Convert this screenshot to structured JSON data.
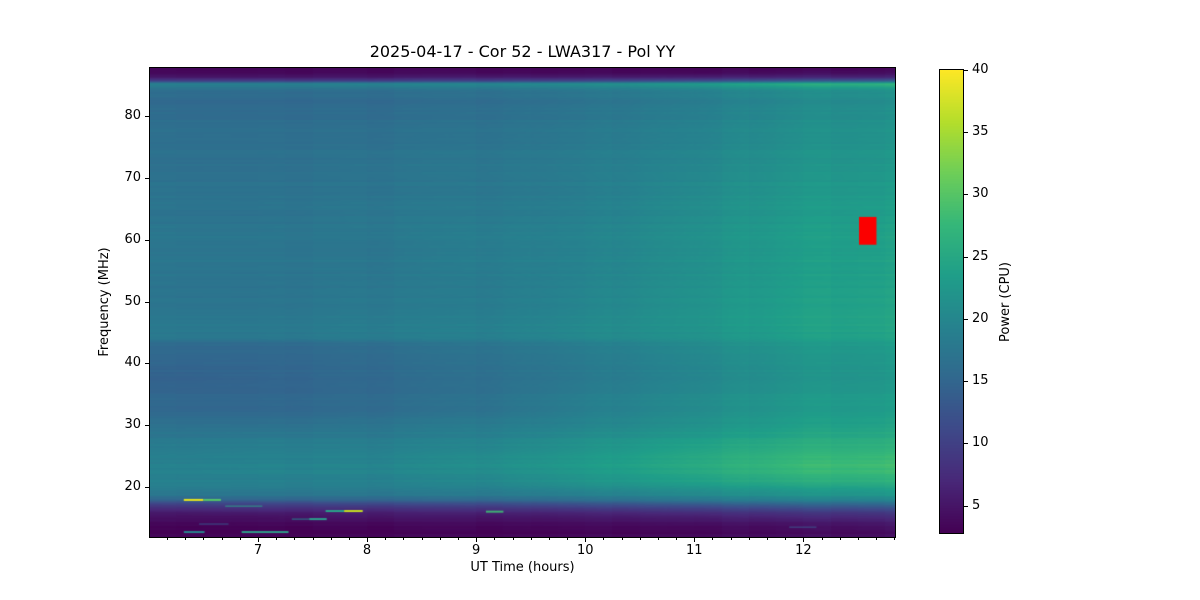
{
  "chart_data": {
    "type": "heatmap",
    "title": "2025-04-17 - Cor 52 - LWA317 - Pol YY",
    "xlabel": "UT Time (hours)",
    "ylabel": "Frequency (MHz)",
    "colorbar_label": "Power (CPU)",
    "xlim": [
      6.01,
      12.84
    ],
    "ylim": [
      11.9,
      87.8
    ],
    "clim": [
      2.8,
      40
    ],
    "x_major_ticks": [
      7,
      8,
      9,
      10,
      11,
      12
    ],
    "x_minor_interval_hours": 0.166667,
    "y_ticks": [
      20,
      30,
      40,
      50,
      60,
      70,
      80
    ],
    "colorbar_ticks": [
      5,
      10,
      15,
      20,
      25,
      30,
      35,
      40
    ],
    "colormap": "viridis",
    "colormap_stops": [
      "#440154",
      "#482878",
      "#3e4989",
      "#31688e",
      "#26828e",
      "#1f9e89",
      "#35b779",
      "#6ece58",
      "#b5de2b",
      "#fde725"
    ],
    "grid": false,
    "legend": "colorbar-right",
    "times": [
      6.0,
      7.0,
      8.0,
      9.0,
      10.0,
      11.0,
      12.0,
      12.84
    ],
    "freqs": [
      87.8,
      87.0,
      86.3,
      85.7,
      85.2,
      84.4,
      83.0,
      80.0,
      76.0,
      72.0,
      68.0,
      64.0,
      60.0,
      56.0,
      52.0,
      48.0,
      45.5,
      44.0,
      43.2,
      41.0,
      38.0,
      35.0,
      32.0,
      30.0,
      28.0,
      26.0,
      24.0,
      22.5,
      21.0,
      19.8,
      18.8,
      18.0,
      17.4,
      16.8,
      16.0,
      15.2,
      14.4,
      13.6,
      12.8,
      11.9
    ],
    "power": [
      [
        2.8,
        2.8,
        2.8,
        2.8,
        2.8,
        2.8,
        2.8,
        2.8
      ],
      [
        3.5,
        3.5,
        3.5,
        3.5,
        3.5,
        3.5,
        4.0,
        4.0
      ],
      [
        5.5,
        5.5,
        5.5,
        6.0,
        6.0,
        6.5,
        7.0,
        7.0
      ],
      [
        10.0,
        10.0,
        10.0,
        10.5,
        11.0,
        12.0,
        13.5,
        14.0
      ],
      [
        19.5,
        19.5,
        20.0,
        20.5,
        21.5,
        23.5,
        26.5,
        27.5
      ],
      [
        16.5,
        16.5,
        16.5,
        17.0,
        18.0,
        19.5,
        21.5,
        22.0
      ],
      [
        15.5,
        15.5,
        15.5,
        16.0,
        17.0,
        18.5,
        20.5,
        21.0
      ],
      [
        16.0,
        16.0,
        16.0,
        16.5,
        17.5,
        19.0,
        21.0,
        21.5
      ],
      [
        16.5,
        16.5,
        16.5,
        17.0,
        18.0,
        19.5,
        21.5,
        22.0
      ],
      [
        16.5,
        16.5,
        17.0,
        17.5,
        18.5,
        20.0,
        22.0,
        22.5
      ],
      [
        17.0,
        17.0,
        17.0,
        17.5,
        18.5,
        20.5,
        22.5,
        23.0
      ],
      [
        17.0,
        17.0,
        17.5,
        18.0,
        19.0,
        21.0,
        23.0,
        23.5
      ],
      [
        17.5,
        17.5,
        17.5,
        18.5,
        19.5,
        21.5,
        23.5,
        24.0
      ],
      [
        17.5,
        17.5,
        17.5,
        18.5,
        19.5,
        21.5,
        23.5,
        24.0
      ],
      [
        17.0,
        17.0,
        17.5,
        18.0,
        19.5,
        21.5,
        23.5,
        24.0
      ],
      [
        17.5,
        17.5,
        18.0,
        18.5,
        20.0,
        22.0,
        24.0,
        24.5
      ],
      [
        18.0,
        18.0,
        18.5,
        19.0,
        20.5,
        22.0,
        24.0,
        24.5
      ],
      [
        17.5,
        17.5,
        18.0,
        18.5,
        20.0,
        21.5,
        23.5,
        24.0
      ],
      [
        15.5,
        15.5,
        16.0,
        17.0,
        18.5,
        20.5,
        22.5,
        23.0
      ],
      [
        15.0,
        15.0,
        15.5,
        16.5,
        18.0,
        20.0,
        22.0,
        22.5
      ],
      [
        14.5,
        15.0,
        15.5,
        16.5,
        18.0,
        20.0,
        22.0,
        22.5
      ],
      [
        15.0,
        15.0,
        15.5,
        16.5,
        18.5,
        20.5,
        22.5,
        23.0
      ],
      [
        15.5,
        15.5,
        16.0,
        17.0,
        19.0,
        21.0,
        23.0,
        23.5
      ],
      [
        16.5,
        16.5,
        17.0,
        18.0,
        19.5,
        21.5,
        23.5,
        24.0
      ],
      [
        17.5,
        18.0,
        18.0,
        19.0,
        21.0,
        23.0,
        25.0,
        25.5
      ],
      [
        18.5,
        19.0,
        19.0,
        20.0,
        22.0,
        24.5,
        26.5,
        27.0
      ],
      [
        19.0,
        19.5,
        19.5,
        21.0,
        23.0,
        25.5,
        28.0,
        28.5
      ],
      [
        19.0,
        19.5,
        19.5,
        20.5,
        22.5,
        25.0,
        27.5,
        28.0
      ],
      [
        19.0,
        19.0,
        19.0,
        20.0,
        22.0,
        24.0,
        26.0,
        26.5
      ],
      [
        18.5,
        18.5,
        18.5,
        19.0,
        20.5,
        22.0,
        23.5,
        24.0
      ],
      [
        17.5,
        17.5,
        17.5,
        18.0,
        19.0,
        20.5,
        22.0,
        22.5
      ],
      [
        15.5,
        15.5,
        15.5,
        16.0,
        17.0,
        18.5,
        20.0,
        20.5
      ],
      [
        11.0,
        11.0,
        11.5,
        12.0,
        13.0,
        14.5,
        16.0,
        16.5
      ],
      [
        8.0,
        8.5,
        8.5,
        9.0,
        10.0,
        11.0,
        12.5,
        13.0
      ],
      [
        5.5,
        6.0,
        6.0,
        6.5,
        7.0,
        8.0,
        9.0,
        9.5
      ],
      [
        4.5,
        4.5,
        5.0,
        5.0,
        5.5,
        6.0,
        7.0,
        7.5
      ],
      [
        3.8,
        4.0,
        4.0,
        4.2,
        4.5,
        5.0,
        5.5,
        6.0
      ],
      [
        3.2,
        3.4,
        3.4,
        3.6,
        3.8,
        4.0,
        4.5,
        5.0
      ],
      [
        3.0,
        3.0,
        3.0,
        3.2,
        3.4,
        3.6,
        4.0,
        4.3
      ],
      [
        2.9,
        2.9,
        2.9,
        3.0,
        3.2,
        3.4,
        3.8,
        4.0
      ]
    ],
    "features": {
      "flag_box": {
        "t0": 12.51,
        "t1": 12.67,
        "f0": 59.2,
        "f1": 63.7,
        "color": "#fb0000"
      },
      "rfi_streaks": [
        {
          "t0": 6.32,
          "t1": 6.5,
          "f": 17.9,
          "color": "#e8e51c",
          "h": 2
        },
        {
          "t0": 6.5,
          "t1": 6.66,
          "f": 17.9,
          "color": "#56c667",
          "h": 2
        },
        {
          "t0": 6.7,
          "t1": 7.04,
          "f": 16.9,
          "color": "#2f9d8a",
          "h": 1
        },
        {
          "t0": 7.62,
          "t1": 7.79,
          "f": 16.1,
          "color": "#2aa58a",
          "h": 2
        },
        {
          "t0": 7.79,
          "t1": 7.96,
          "f": 16.1,
          "color": "#c6e022",
          "h": 2
        },
        {
          "t0": 7.31,
          "t1": 7.47,
          "f": 14.8,
          "color": "#28838e",
          "h": 1
        },
        {
          "t0": 7.47,
          "t1": 7.63,
          "f": 14.8,
          "color": "#2d9e8c",
          "h": 2
        },
        {
          "t0": 9.09,
          "t1": 9.25,
          "f": 16.0,
          "color": "#3fae74",
          "h": 2
        },
        {
          "t0": 6.85,
          "t1": 7.28,
          "f": 12.7,
          "color": "#2f9d8a",
          "h": 2
        },
        {
          "t0": 6.32,
          "t1": 6.51,
          "f": 12.7,
          "color": "#28838e",
          "h": 2
        },
        {
          "t0": 6.46,
          "t1": 6.73,
          "f": 14.0,
          "color": "#3a538b",
          "h": 1
        },
        {
          "t0": 11.87,
          "t1": 12.12,
          "f": 13.5,
          "color": "#3e568d",
          "h": 1
        }
      ]
    }
  }
}
